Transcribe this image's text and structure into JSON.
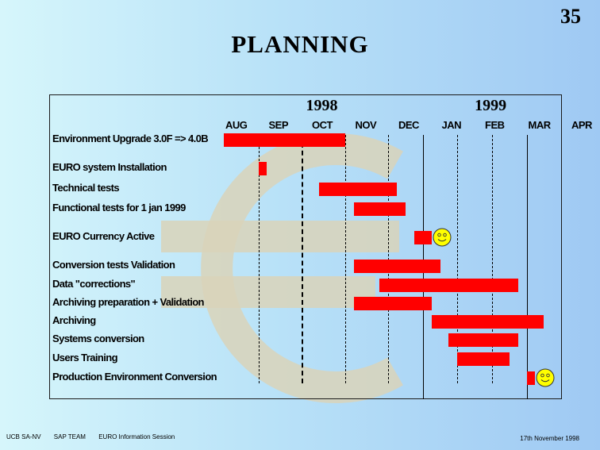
{
  "slide": {
    "number": "35",
    "title": "PLANNING"
  },
  "chart_data": {
    "type": "gantt",
    "years": [
      "1998",
      "1999"
    ],
    "months": [
      "AUG",
      "SEP",
      "OCT",
      "NOV",
      "DEC",
      "JAN",
      "FEB",
      "MAR",
      "APR"
    ],
    "tasks": [
      {
        "label": "Environment Upgrade 3.0F => 4.0B",
        "start": 0.0,
        "end": 2.8
      },
      {
        "label": "EURO system Installation",
        "start": 0.8,
        "end": 1.0
      },
      {
        "label": "Technical tests",
        "start": 2.2,
        "end": 4.0
      },
      {
        "label": "Functional tests for 1 jan 1999",
        "start": 3.0,
        "end": 4.2
      },
      {
        "label": "EURO Currency Active",
        "start": 4.4,
        "end": 4.8,
        "milestone_icon": "smiley-icon"
      },
      {
        "label": "Conversion tests Validation",
        "start": 3.0,
        "end": 5.0
      },
      {
        "label": "Data \"corrections\"",
        "start": 3.6,
        "end": 6.8
      },
      {
        "label": "Archiving preparation + Validation",
        "start": 3.0,
        "end": 4.8
      },
      {
        "label": "Archiving",
        "start": 4.8,
        "end": 7.4
      },
      {
        "label": "Systems conversion",
        "start": 5.2,
        "end": 6.8
      },
      {
        "label": "Users Training",
        "start": 5.4,
        "end": 6.6
      },
      {
        "label": "Production Environment Conversion",
        "start": 7.0,
        "end": 7.2,
        "milestone_icon": "smiley-icon"
      }
    ],
    "bar_color": "#ff0000",
    "background_watermark": "euro-symbol-icon"
  },
  "footer": {
    "org": "UCB SA-NV",
    "team": "SAP TEAM",
    "session": "EURO Information Session",
    "date": "17th November 1998"
  }
}
